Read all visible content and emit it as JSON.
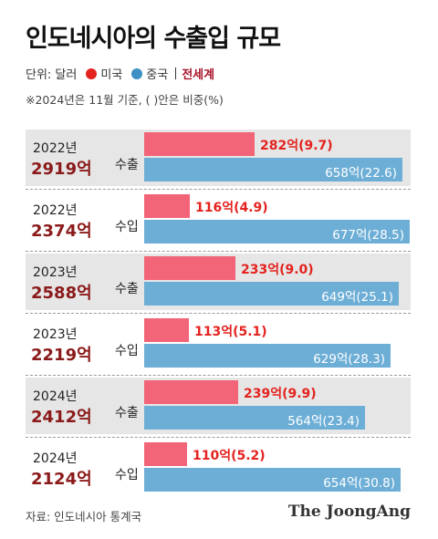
{
  "title": "인도네시아의 수출입 규모",
  "legend": {
    "unit_label": "단위: 달러",
    "us_label": "미국",
    "cn_label": "중국",
    "total_label": "전세계",
    "us_color": "#f26478",
    "cn_color": "#6daed6",
    "total_color": "#a8132a"
  },
  "note": "※2024년은 11월 기준, ( )안은 비중(%)",
  "source": "자료: 인도네시아 통계국",
  "brand": "The JoongAng",
  "chart_data": {
    "type": "bar",
    "unit": "억 달러",
    "x_max": 680,
    "rows": [
      {
        "year": "2022년",
        "total": "2919억",
        "kind": "수출",
        "us": 282,
        "us_label": "282억(9.7)",
        "cn": 658,
        "cn_label": "658억(22.6)"
      },
      {
        "year": "2022년",
        "total": "2374억",
        "kind": "수입",
        "us": 116,
        "us_label": "116억(4.9)",
        "cn": 677,
        "cn_label": "677억(28.5)"
      },
      {
        "year": "2023년",
        "total": "2588억",
        "kind": "수출",
        "us": 233,
        "us_label": "233억(9.0)",
        "cn": 649,
        "cn_label": "649억(25.1)"
      },
      {
        "year": "2023년",
        "total": "2219억",
        "kind": "수입",
        "us": 113,
        "us_label": "113억(5.1)",
        "cn": 629,
        "cn_label": "629억(28.3)"
      },
      {
        "year": "2024년",
        "total": "2412억",
        "kind": "수출",
        "us": 239,
        "us_label": "239억(9.9)",
        "cn": 564,
        "cn_label": "564억(23.4)"
      },
      {
        "year": "2024년",
        "total": "2124억",
        "kind": "수입",
        "us": 110,
        "us_label": "110억(5.2)",
        "cn": 654,
        "cn_label": "654억(30.8)"
      }
    ]
  }
}
